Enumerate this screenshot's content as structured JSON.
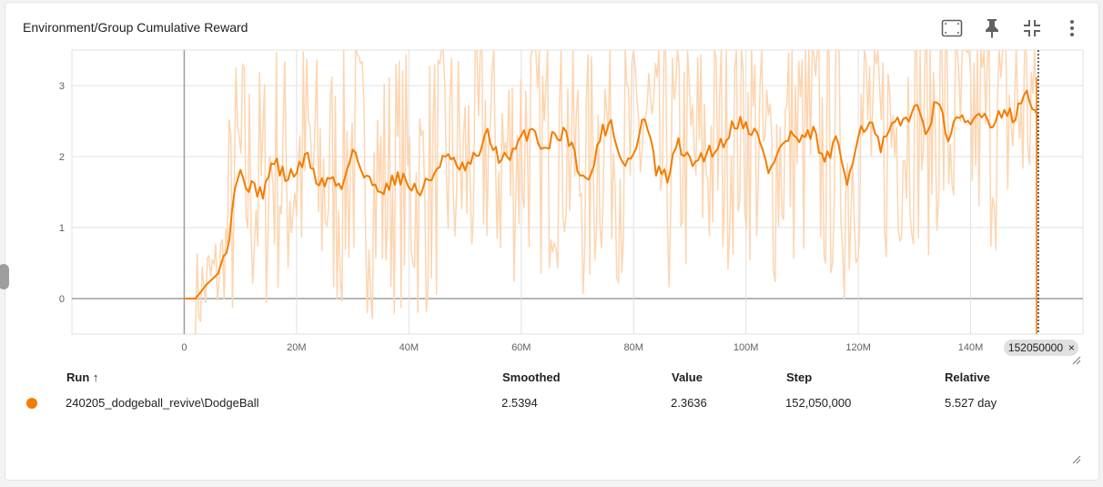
{
  "card": {
    "title": "Environment/Group Cumulative Reward",
    "toolbar": [
      {
        "name": "fit-domain-icon"
      },
      {
        "name": "pin-icon"
      },
      {
        "name": "collapse-icon"
      },
      {
        "name": "more-vert-icon"
      }
    ]
  },
  "colors": {
    "smoothed": "#f57c00",
    "raw": "#fdd5b0",
    "grid": "#e0e0e0",
    "axis": "#9e9e9e"
  },
  "chart_data": {
    "type": "line",
    "title": "Environment/Group Cumulative Reward",
    "xlabel": "",
    "ylabel": "",
    "xlim": [
      -20000000,
      160000000
    ],
    "ylim": [
      -0.5,
      3.5
    ],
    "x_ticks": [
      0,
      20000000,
      40000000,
      60000000,
      80000000,
      100000000,
      120000000,
      140000000
    ],
    "x_tick_labels": [
      "0",
      "20M",
      "40M",
      "60M",
      "80M",
      "100M",
      "120M",
      "140M"
    ],
    "y_ticks": [
      0,
      1,
      2,
      3
    ],
    "y_tick_labels": [
      "0",
      "1",
      "2",
      "3"
    ],
    "grid": true,
    "cursor_step": 152050000,
    "cursor_label": "152050000",
    "series": [
      {
        "name": "240205_dodgeball_revive\\DodgeBall",
        "color": "#f57c00",
        "smoothed_x": [
          0,
          2000000,
          4000000,
          6000000,
          7000000,
          8000000,
          9000000,
          10000000,
          12000000,
          14000000,
          16000000,
          18000000,
          20000000,
          22000000,
          24000000,
          26000000,
          28000000,
          30000000,
          32000000,
          34000000,
          36000000,
          38000000,
          40000000,
          42000000,
          44000000,
          46000000,
          48000000,
          50000000,
          52000000,
          54000000,
          56000000,
          58000000,
          60000000,
          62000000,
          64000000,
          66000000,
          68000000,
          70000000,
          72000000,
          74000000,
          76000000,
          78000000,
          80000000,
          82000000,
          84000000,
          86000000,
          88000000,
          90000000,
          92000000,
          94000000,
          96000000,
          98000000,
          100000000,
          102000000,
          104000000,
          106000000,
          108000000,
          110000000,
          112000000,
          114000000,
          116000000,
          118000000,
          120000000,
          122000000,
          124000000,
          126000000,
          128000000,
          130000000,
          132000000,
          134000000,
          136000000,
          138000000,
          140000000,
          142000000,
          144000000,
          146000000,
          148000000,
          150000000,
          151000000,
          152050000
        ],
        "smoothed_y": [
          0,
          0,
          0.2,
          0.35,
          0.6,
          0.9,
          1.6,
          1.75,
          1.55,
          1.5,
          1.95,
          1.7,
          1.8,
          2.0,
          1.6,
          1.7,
          1.55,
          2.15,
          1.7,
          1.6,
          1.55,
          1.75,
          1.6,
          1.5,
          1.7,
          2.0,
          1.9,
          1.8,
          2.0,
          2.3,
          2.0,
          1.95,
          2.25,
          2.4,
          2.1,
          2.3,
          2.35,
          1.9,
          1.6,
          2.3,
          2.5,
          1.9,
          2.0,
          2.6,
          1.8,
          1.7,
          2.2,
          1.9,
          2.0,
          2.1,
          2.2,
          2.5,
          2.45,
          2.3,
          1.8,
          2.1,
          2.3,
          2.2,
          2.35,
          1.9,
          2.2,
          1.65,
          2.35,
          2.5,
          2.1,
          2.4,
          2.5,
          2.7,
          2.4,
          2.75,
          2.3,
          2.5,
          2.45,
          2.65,
          2.45,
          2.7,
          2.55,
          2.95,
          2.7,
          2.5394
        ]
      }
    ]
  },
  "table": {
    "headers": {
      "run": "Run ↑",
      "smoothed": "Smoothed",
      "value": "Value",
      "step": "Step",
      "relative": "Relative"
    },
    "rows": [
      {
        "run": "240205_dodgeball_revive\\DodgeBall",
        "smoothed": "2.5394",
        "value": "2.3636",
        "step": "152,050,000",
        "relative": "5.527 day"
      }
    ]
  }
}
